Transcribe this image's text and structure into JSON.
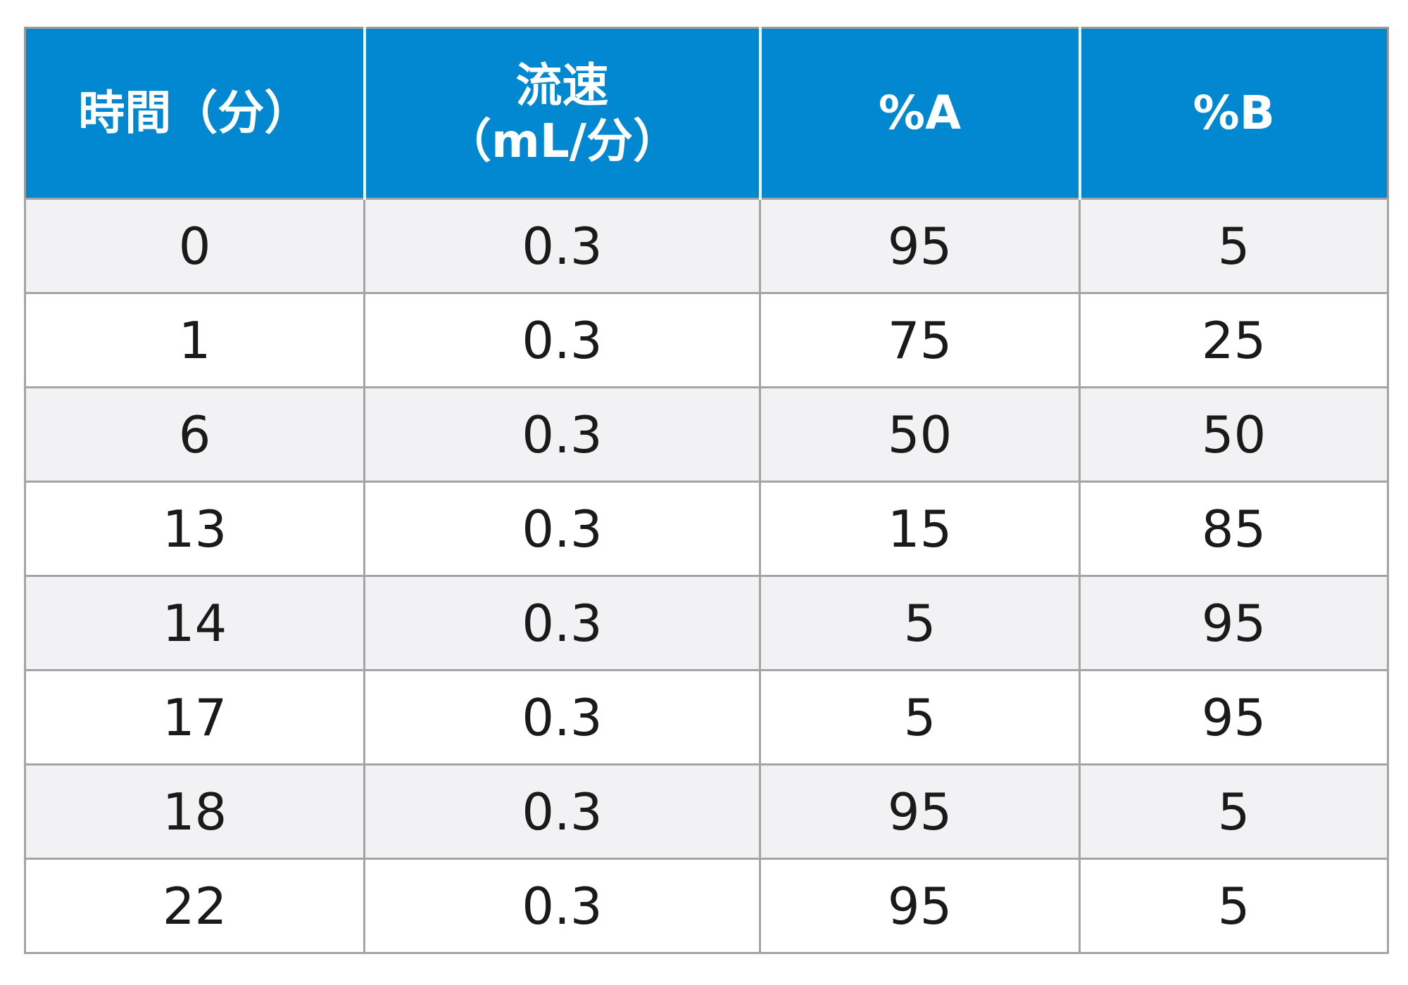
{
  "table": {
    "headers": [
      {
        "lines": [
          "時間（分）"
        ]
      },
      {
        "lines": [
          "流速",
          "（mL/分）"
        ]
      },
      {
        "lines": [
          "%A"
        ]
      },
      {
        "lines": [
          "%B"
        ]
      }
    ],
    "rows": [
      [
        "0",
        "0.3",
        "95",
        "5"
      ],
      [
        "1",
        "0.3",
        "75",
        "25"
      ],
      [
        "6",
        "0.3",
        "50",
        "50"
      ],
      [
        "13",
        "0.3",
        "15",
        "85"
      ],
      [
        "14",
        "0.3",
        "5",
        "95"
      ],
      [
        "17",
        "0.3",
        "5",
        "95"
      ],
      [
        "18",
        "0.3",
        "95",
        "5"
      ],
      [
        "22",
        "0.3",
        "95",
        "5"
      ]
    ]
  },
  "colors": {
    "header_bg": "#0288d1",
    "header_text": "#ffffff",
    "row_odd_bg": "#f2f2f4",
    "row_even_bg": "#ffffff",
    "grid": "#a4a4a4"
  }
}
